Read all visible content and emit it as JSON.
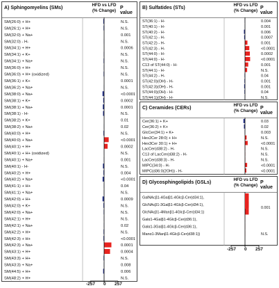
{
  "colors": {
    "up": "#e8231f",
    "down": "#2b3990",
    "axis": "#000000",
    "border": "#444444"
  },
  "column_labels": {
    "ratio": "HFD vs LFD\n(% Change)",
    "pvalue": "P value"
  },
  "axis_ticks": {
    "left": "-257",
    "mid": "0",
    "right": "257"
  },
  "chart_data": [
    {
      "type": "bar",
      "orientation": "horizontal",
      "title": "A) Sphingomyelins (SMs)",
      "xlabel": "HFD vs LFD (% Change)",
      "xlim": [
        -257,
        257
      ],
      "xticks": [
        "-257",
        "0",
        "257"
      ],
      "categories": [
        "SM(26:0) + H+",
        "SM(26:1) + H+",
        "SM(32:0) + Na+",
        "SM(32:0) - H-",
        "SM(34:1) + H+",
        "SM(34:1) + K+",
        "SM(34:1) + Na+",
        "SM(36:0) + H+",
        "SM(36:0) + H+ (oxidized)",
        "SM(36:1) + K+",
        "SM(36:2) + Na+",
        "SM(38:0) + Na+",
        "SM(38:1) + K+",
        "SM(38:1) + Na+",
        "SM(38:1) - H-",
        "SM(38:2) + K+",
        "SM(38:2) + Na+",
        "SM(40:0) + H+",
        "SM(40:0) + Na+",
        "SM(40:1) + H+",
        "SM(40:1) + H+ (oxidized)",
        "SM(40:1) + Na+",
        "SM(40:1) - H-",
        "SM(40:2) + H+",
        "SM(40:2) + Na+",
        "SM(41:1) + H+",
        "SM(41:1) + Na+",
        "SM(42:0) + H+",
        "SM(42:0) + K+",
        "SM(42:0) + Na+",
        "SM(42:1) + H+",
        "SM(42:1) + Na+",
        "SM(42:2) + H+",
        "SM(42:3) + H+",
        "SM(42:3) + Na+",
        "SM(43:1) + H+",
        "SM(43:3) + H+",
        "SM(43:3) + Na+",
        "SM(44:5) + H+",
        "SM(48:2) + H+"
      ],
      "values": [
        -15,
        -10,
        0,
        -3,
        0,
        -6,
        -9,
        -6,
        -9,
        0,
        -3,
        -30,
        -16,
        -24,
        -20,
        0,
        -3,
        -12,
        85,
        65,
        -2,
        -4,
        -22,
        -12,
        -28,
        -4,
        -5,
        -30,
        -12,
        -8,
        -4,
        -4,
        -10,
        -12,
        135,
        110,
        -10,
        -5,
        -18,
        -3
      ],
      "pvalues": [
        "N.S.",
        "N.S.",
        "0.001",
        "N.S.",
        "0.0006",
        "N.S.",
        "N.S.",
        "N.S.",
        "N.S.",
        "0.0001",
        "N.S.",
        "<0.0001",
        "0.0002",
        "0.0001",
        "N.S.",
        "0.01",
        "0.02",
        "N.S.",
        "<0.0001",
        "0.0002",
        "N.S.",
        "0.001",
        "N.S.",
        "0.004",
        "<0.0001",
        "0.04",
        "N.S.",
        "0.0009",
        "N.S.",
        "N.S.",
        "N.S.",
        "0.02",
        "N.S.",
        "<0.0001",
        "0.0001",
        "0.0004",
        "N.S.",
        "0.008",
        "0.006",
        "N.S."
      ]
    },
    {
      "type": "bar",
      "orientation": "horizontal",
      "title": "B) Sulfatides (STs)",
      "xlabel": "HFD vs LFD (% Change)",
      "xlim": [
        -257,
        257
      ],
      "categories": [
        "ST(36:1) - H-",
        "ST(40:1) - H-",
        "ST(40:2) - H-",
        "ST(42:1) - H-",
        "ST(42:2) - H-",
        "ST(42:3) - H-",
        "ST(44:0) - H-",
        "ST(44:0) - H-",
        "C13 of ST(44:0) - H-",
        "ST(44:1) - H-",
        "ST(44:2) - H-",
        "ST(42:0)(OH) - H-",
        "ST(42:3)(OH) - H-",
        "ST(44:0)(OH) - H-",
        "ST(44:1)(OH) - H-"
      ],
      "values": [
        -5,
        -3,
        -20,
        -15,
        45,
        80,
        90,
        95,
        60,
        40,
        -8,
        -10,
        -15,
        -10,
        -5
      ],
      "pvalues": [
        "0.004",
        "0.001",
        "0.006",
        "0.0007",
        "0.001",
        "<0.0001",
        "0.0002",
        "<0.0001",
        "0.001",
        "N.S.",
        "0.04",
        "0.001",
        "0.001",
        "0.04",
        "N.S."
      ]
    },
    {
      "type": "bar",
      "orientation": "horizontal",
      "title": "C) Ceramides (CERs)",
      "xlabel": "HFD vs LFD (% Change)",
      "xlim": [
        -257,
        257
      ],
      "categories": [
        "Cer(36:1) + K+",
        "Cer(36:2) + K+",
        "GlcCer(34:1) + K+",
        "Hex2Cer 28:0) + H+",
        "Hex3Cer 30:1) + H+",
        "LacCer(d38:2) - H-",
        "C13 of LacCer(d38:2) - H-",
        "LacCer(d38:3) - H-",
        "MIPC(34:0) - H-",
        "MIPC(d36:0(2OH)) - H-"
      ],
      "values": [
        -30,
        -20,
        -5,
        30,
        50,
        5,
        5,
        5,
        40,
        25
      ],
      "pvalues": [
        "0.03",
        "0.02",
        "0.003",
        "N.S.",
        "<0.0001",
        "N.S.",
        "N.S.",
        "N.S.",
        "<0.0001",
        "<0.0001"
      ]
    },
    {
      "type": "bar",
      "orientation": "horizontal",
      "title": "D) Glycosphingolipids (GSLs)",
      "xlabel": "HFD vs LFD (% Change)",
      "xlim": [
        -257,
        257
      ],
      "xticks": [
        "-257",
        "0",
        "257"
      ],
      "categories": [
        "GalNAcβ1-4Galβ1-4Glcβ-Cer(d34:1),",
        "GlcNAcβ1-3Galβ1-4Glcβ-Cer(d34:1),",
        "GlcNAcβ1-4Manβ1-4Glcβ-Cer(d34:1)",
        "Galα1-4Galβ1-4Glcβ-Cer(d36:1),",
        "Galα1-3Galβ1-4Glcβ-Cer(d36:1),",
        "Manα1-3Manβ1-4Glcβ-Cer(d38:1))"
      ],
      "values": [
        70,
        70,
        70,
        2,
        2,
        2
      ],
      "pvalues": [
        "",
        "",
        "0.001",
        "",
        "",
        "N.S."
      ]
    }
  ]
}
